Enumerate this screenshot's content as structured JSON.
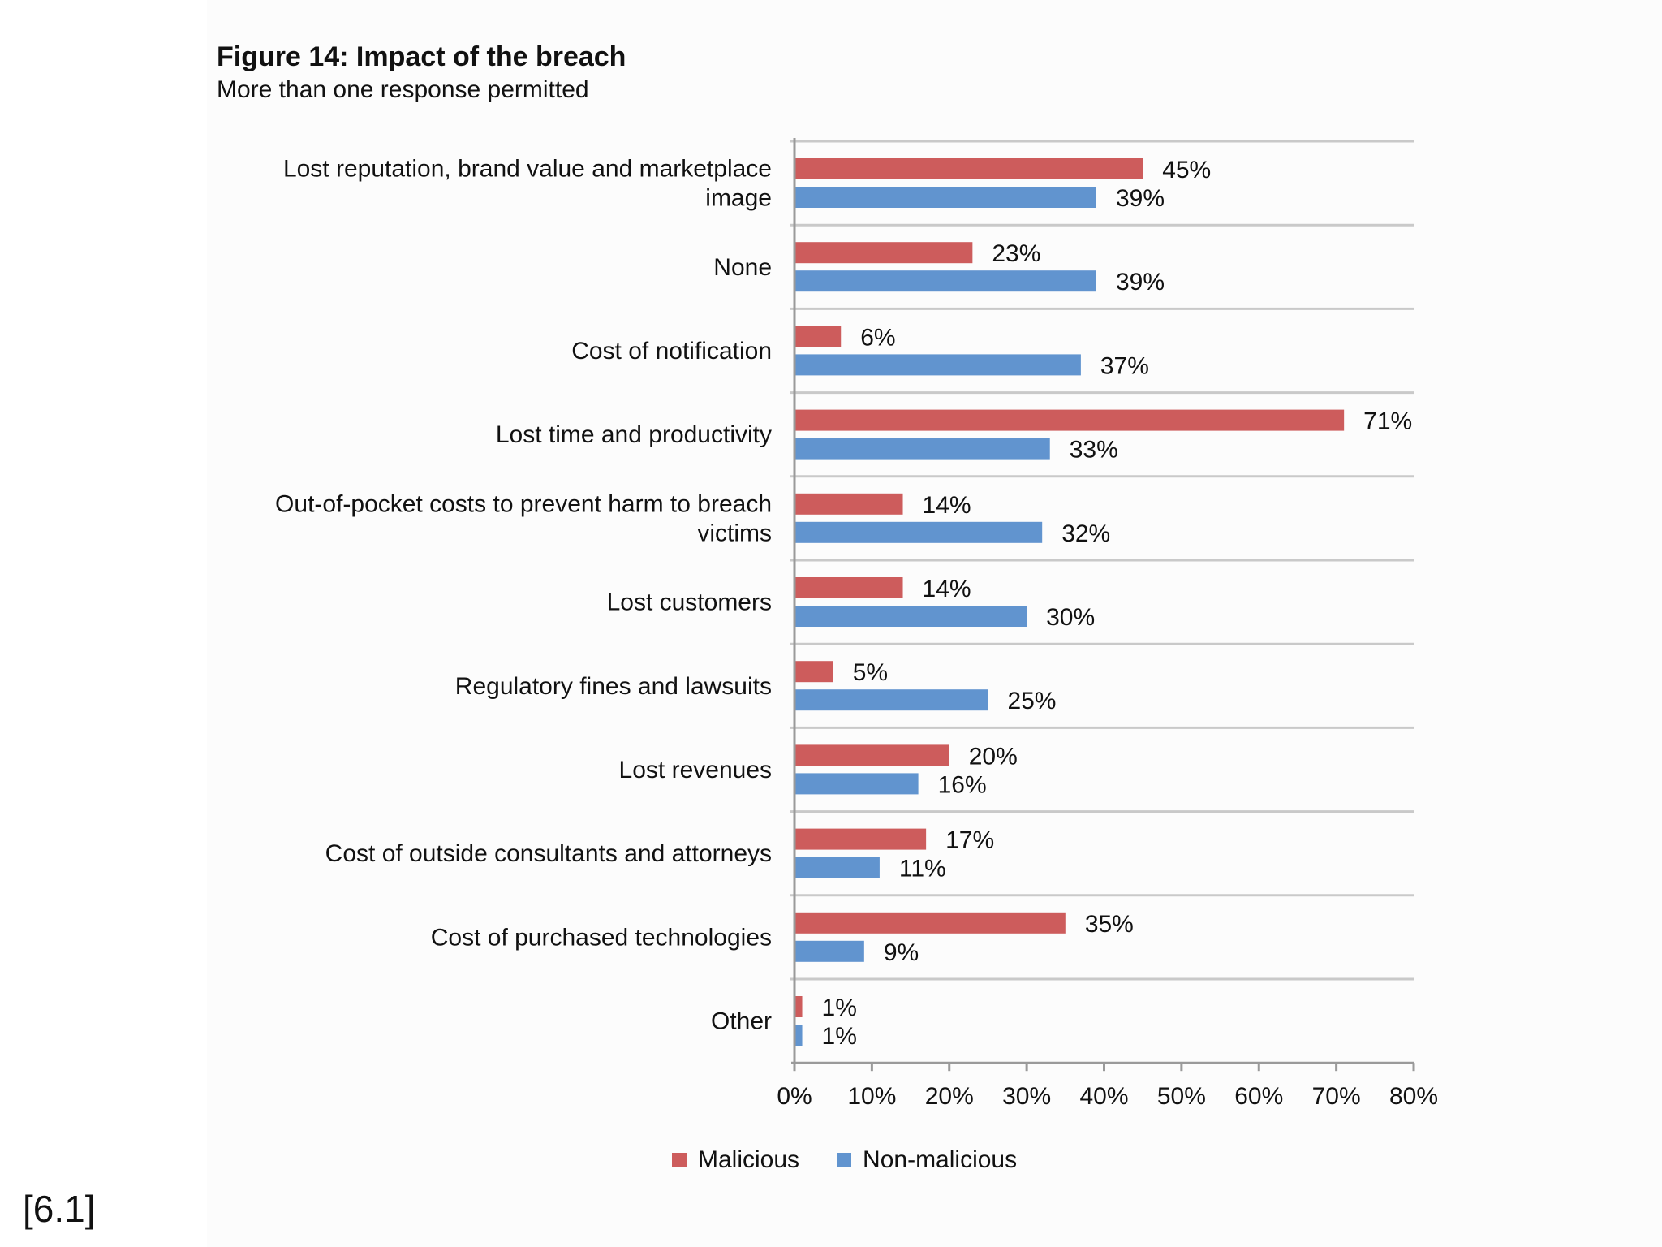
{
  "chart_data": {
    "type": "bar",
    "orientation": "horizontal",
    "title": "Figure 14: Impact of the breach",
    "subtitle": "More than one response permitted",
    "categories": [
      [
        "Lost reputation, brand value and marketplace",
        "image"
      ],
      [
        "None"
      ],
      [
        "Cost of notification"
      ],
      [
        "Lost time and productivity"
      ],
      [
        "Out-of-pocket costs to prevent harm to breach",
        "victims"
      ],
      [
        "Lost customers"
      ],
      [
        "Regulatory fines and lawsuits"
      ],
      [
        "Lost revenues"
      ],
      [
        "Cost of outside consultants and attorneys"
      ],
      [
        "Cost of purchased technologies"
      ],
      [
        "Other"
      ]
    ],
    "series": [
      {
        "name": "Malicious",
        "color": "#cd5c5c",
        "values": [
          45,
          23,
          6,
          71,
          14,
          14,
          5,
          20,
          17,
          35,
          1
        ]
      },
      {
        "name": "Non-malicious",
        "color": "#6194cf",
        "values": [
          39,
          39,
          37,
          33,
          32,
          30,
          25,
          16,
          11,
          9,
          1
        ]
      }
    ],
    "value_suffix": "%",
    "xlim": [
      0,
      80
    ],
    "xticks": [
      "0%",
      "10%",
      "20%",
      "30%",
      "40%",
      "50%",
      "60%",
      "70%",
      "80%"
    ],
    "xtick_values": [
      0,
      10,
      20,
      30,
      40,
      50,
      60,
      70,
      80
    ],
    "legend_position": "bottom",
    "grid": "horizontal separators"
  },
  "footnote": "[6.1]"
}
